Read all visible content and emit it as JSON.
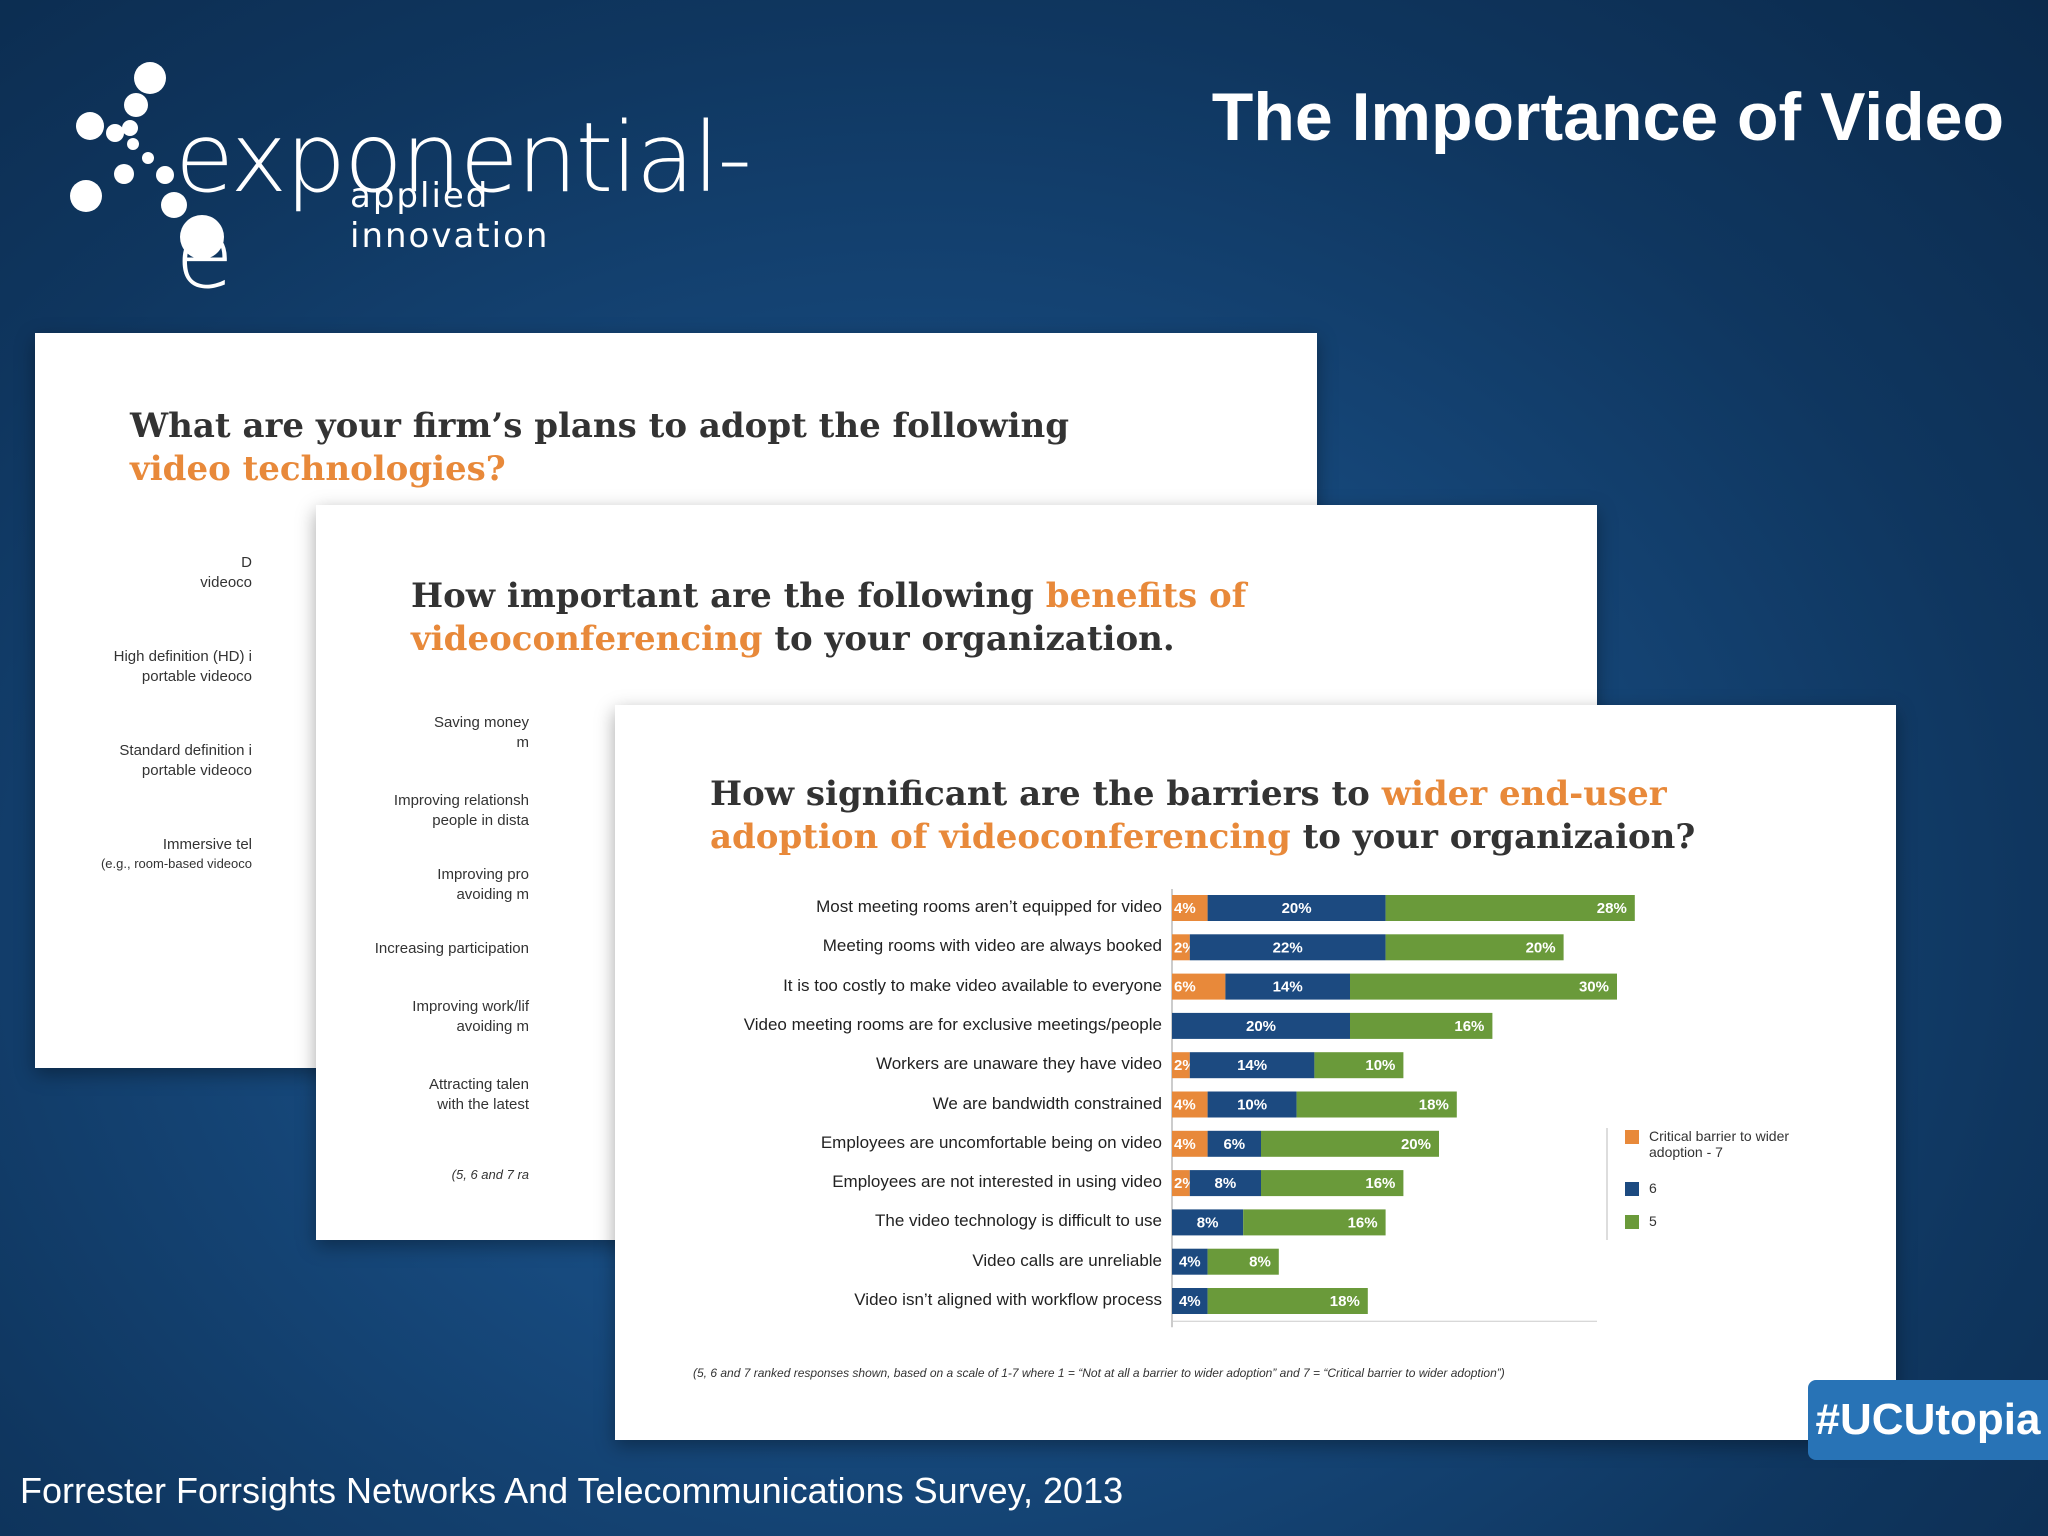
{
  "header": {
    "logo_name": "exponential-e",
    "logo_tagline": "applied innovation",
    "title": "The Importance of Video"
  },
  "card1": {
    "title_a": "What are your firm’s plans to adopt the following",
    "title_b": "video technologies?",
    "labels": [
      "D",
      "videoco",
      "High definition (HD) i",
      "portable videoco",
      "Standard definition i",
      "portable videoco",
      "Immersive tel",
      "(e.g., room-based videoco"
    ]
  },
  "card2": {
    "title_a": "How important are the following ",
    "title_hl1": "benefits of",
    "title_hl2": "videoconferencing",
    "title_b": " to your organization.",
    "labels": [
      "Saving money",
      "m",
      "Improving relationsh",
      "people in dista",
      "Improving pro",
      "avoiding m",
      "Increasing participation",
      "Improving work/lif",
      "avoiding m",
      "Attracting talen",
      "with the latest"
    ],
    "footnote": "(5, 6 and 7 ra"
  },
  "card3": {
    "title_a": "How significant are the barriers to ",
    "title_hl1": "wider end-user",
    "title_hl2": "adoption of videoconferencing",
    "title_b": " to your organizaion?",
    "footnote": "(5, 6 and 7 ranked responses shown, based on a scale of 1-7 where 1 = “Not at all a barrier to wider adoption” and 7 = “Critical barrier to wider adoption”)"
  },
  "colors": {
    "orange": "#e8893a",
    "navy": "#1c4a80",
    "green": "#6a9a3a"
  },
  "chart_data": {
    "type": "bar",
    "orientation": "horizontal",
    "stacked": true,
    "categories": [
      "Most meeting rooms aren’t equipped for video",
      "Meeting rooms with video are always booked",
      "It is too costly to make video available to everyone",
      "Video meeting rooms are for exclusive meetings/people",
      "Workers are unaware they have video",
      "We are bandwidth constrained",
      "Employees are uncomfortable being on video",
      "Employees are not interested in using video",
      "The video technology is difficult to use",
      "Video calls are unreliable",
      "Video isn’t aligned with workflow process"
    ],
    "series": [
      {
        "name": "Critical barrier to wider adoption - 7",
        "values": [
          4,
          2,
          6,
          0,
          2,
          4,
          4,
          2,
          0,
          0,
          0
        ],
        "labels": [
          "4%",
          "2%",
          "6%",
          "",
          "2%",
          "4%",
          "4%",
          "2%",
          "",
          "",
          ""
        ]
      },
      {
        "name": "6",
        "values": [
          20,
          22,
          14,
          20,
          14,
          10,
          6,
          8,
          8,
          4,
          4
        ],
        "labels": [
          "20%",
          "22%",
          "14%",
          "20%",
          "14%",
          "10%",
          "6%",
          "8%",
          "8%",
          "4%",
          "4%"
        ]
      },
      {
        "name": "5",
        "values": [
          28,
          20,
          30,
          16,
          10,
          18,
          20,
          16,
          16,
          8,
          18
        ],
        "labels": [
          "28%",
          "20%",
          "30%",
          "16%",
          "10%",
          "18%",
          "20%",
          "16%",
          "16%",
          "8%",
          "18%"
        ]
      }
    ],
    "title": "How significant are the barriers to wider end-user adoption of videoconferencing to your organizaion?",
    "legend": "right"
  },
  "footer": {
    "source": "Forrester Forrsights Networks And Telecommunications Survey, 2013",
    "hashtag": "#UCUtopia"
  }
}
